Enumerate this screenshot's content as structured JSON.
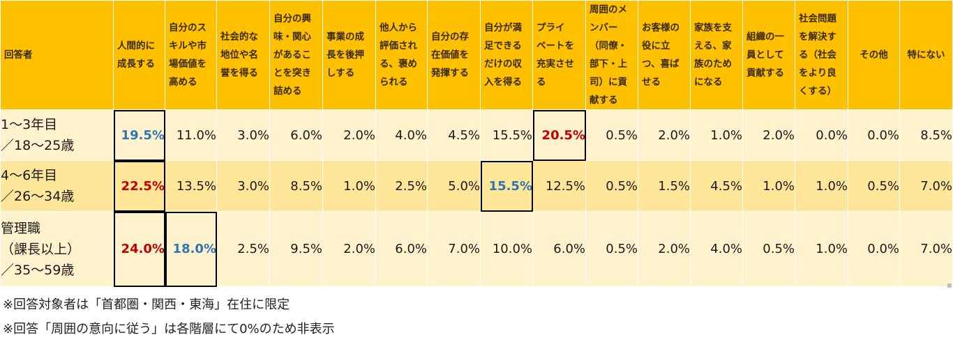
{
  "table": {
    "respondent_header": "回答者",
    "columns": [
      "人間的に\n成長する",
      "自分のス\nキルや市\n場価値を\n高める",
      "社会的な\n地位や名\n誉を得る",
      "自分の興\n味・関心\nがあるこ\nとを突き\n詰める",
      "事業の成\n長を後押\nしする",
      "他人から\n評価され\nる、褒め\nられる",
      "自分の存\n在価値を\n発揮する",
      "自分が満\n足できる\nだけの収\n入を得る",
      "プライ\nベートを\n充実させ\nる",
      "周囲のメ\nンバー\n（同僚・\n部下・上\n司）に貢\n献する",
      "お客様の\n役に立\nつ、喜ば\nせる",
      "家族を支\nえる、家\n族のため\nになる",
      "組織の一\n員として\n貢献する",
      "社会問題\nを解決す\nる（社会\nをより良\nくする）",
      "その他",
      "特にない"
    ],
    "rows": [
      {
        "label": "1～3年目\n／18～25歳",
        "values": [
          "19.5%",
          "11.0%",
          "3.0%",
          "6.0%",
          "2.0%",
          "4.0%",
          "4.5%",
          "15.5%",
          "20.5%",
          "0.5%",
          "2.0%",
          "1.0%",
          "2.0%",
          "0.0%",
          "0.0%",
          "8.5%"
        ]
      },
      {
        "label": "4～6年目\n／26～34歳",
        "values": [
          "22.5%",
          "13.5%",
          "3.0%",
          "8.5%",
          "1.0%",
          "2.5%",
          "5.0%",
          "15.5%",
          "12.5%",
          "0.5%",
          "1.5%",
          "4.5%",
          "1.0%",
          "1.0%",
          "0.5%",
          "7.0%"
        ]
      },
      {
        "label": "管理職\n（課長以上）\n／35～59歳",
        "values": [
          "24.0%",
          "18.0%",
          "2.5%",
          "9.5%",
          "2.0%",
          "6.0%",
          "7.0%",
          "10.0%",
          "6.0%",
          "0.5%",
          "2.0%",
          "4.0%",
          "0.5%",
          "1.0%",
          "0.0%",
          "7.0%"
        ]
      }
    ],
    "colors": {
      "header_bg": "#ffc000",
      "row_light": "#fff2cc",
      "row_dark": "#ffe699",
      "highlight_red": "#c00000",
      "highlight_blue": "#2e75b6"
    }
  },
  "notes": [
    "※回答対象者は「首都圏・関西・東海」在住に限定",
    "※回答「周囲の意向に従う」は各階層にて0%のため非表示"
  ]
}
